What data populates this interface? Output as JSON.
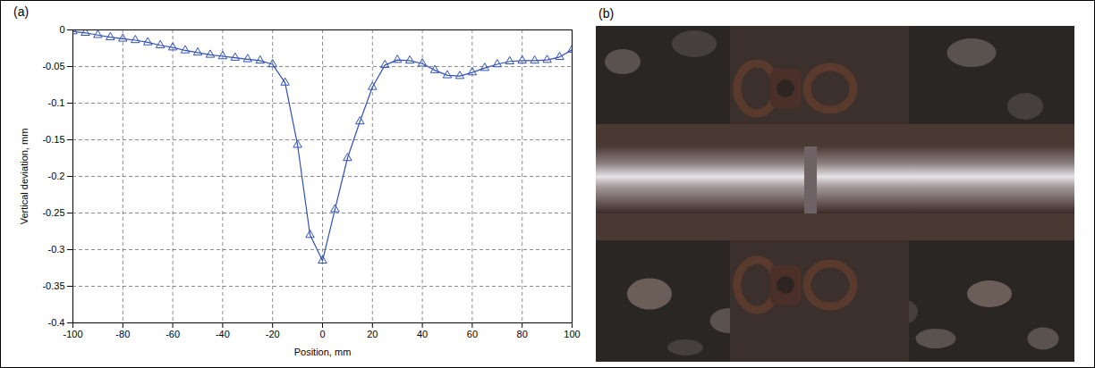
{
  "chart_data": {
    "type": "line",
    "panel_label": "(a)",
    "x_label": "Position, mm",
    "y_label": "Vertical deviation, mm",
    "x": [
      -100,
      -95,
      -90,
      -85,
      -80,
      -75,
      -70,
      -65,
      -60,
      -55,
      -50,
      -45,
      -40,
      -35,
      -30,
      -25,
      -20,
      -15,
      -10,
      -5,
      0,
      5,
      10,
      15,
      20,
      25,
      30,
      35,
      40,
      45,
      50,
      55,
      60,
      65,
      70,
      75,
      80,
      85,
      90,
      95,
      100
    ],
    "series": [
      {
        "color": "#3050b8",
        "marker": "triangle",
        "line_style": "solid",
        "values": [
          -0.002,
          -0.004,
          -0.007,
          -0.01,
          -0.012,
          -0.014,
          -0.017,
          -0.021,
          -0.024,
          -0.028,
          -0.031,
          -0.034,
          -0.036,
          -0.038,
          -0.04,
          -0.042,
          -0.047,
          -0.072,
          -0.157,
          -0.28,
          -0.315,
          -0.245,
          -0.175,
          -0.125,
          -0.078,
          -0.048,
          -0.041,
          -0.042,
          -0.046,
          -0.055,
          -0.062,
          -0.063,
          -0.058,
          -0.052,
          -0.047,
          -0.043,
          -0.042,
          -0.042,
          -0.041,
          -0.037,
          -0.027
        ]
      }
    ],
    "xlim": [
      -100,
      100
    ],
    "xticks": [
      -100,
      -80,
      -60,
      -40,
      -20,
      0,
      20,
      40,
      60,
      80,
      100
    ],
    "ylim": [
      -0.4,
      0
    ],
    "yticks": [
      -0.4,
      -0.35,
      -0.3,
      -0.25,
      -0.2,
      -0.15,
      -0.1,
      -0.05,
      0
    ],
    "grid": true
  },
  "photo_panel": {
    "panel_label": "(b)"
  }
}
